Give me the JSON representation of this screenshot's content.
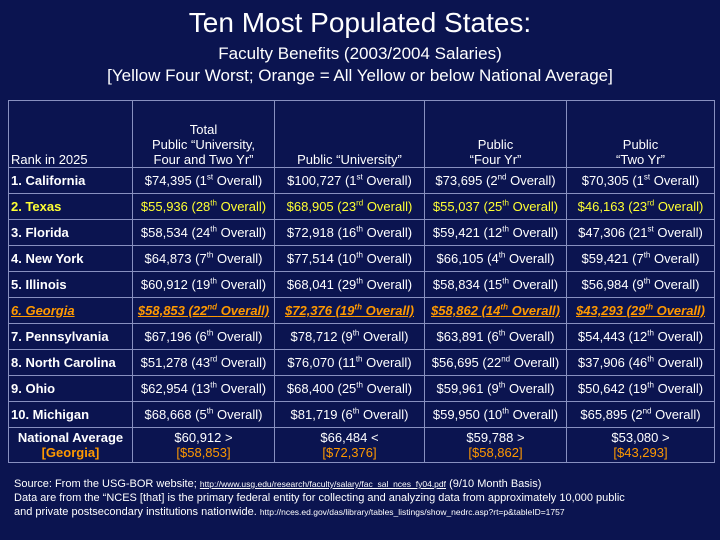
{
  "title": "Ten Most Populated States:",
  "subtitle_line1": "Faculty Benefits (2003/2004 Salaries)",
  "subtitle_line2": "[Yellow Four Worst; Orange = All Yellow or below National Average]",
  "headers": {
    "rank": "Rank in 2025",
    "col1_l1": "Total",
    "col1_l2": "Public “University,",
    "col1_l3": "Four and Two Yr”",
    "col2": "Public “University”",
    "col3_l1": "Public",
    "col3_l2": "“Four Yr”",
    "col4_l1": "Public",
    "col4_l2": "“Two Yr”"
  },
  "rows": [
    {
      "state": "1. California",
      "style": "white",
      "cells": [
        {
          "v": "$74,395 (1",
          "r": "st",
          "t": " Overall)"
        },
        {
          "v": "$100,727 (1",
          "r": "st",
          "t": " Overall)"
        },
        {
          "v": "$73,695 (2",
          "r": "nd",
          "t": " Overall)"
        },
        {
          "v": "$70,305 (1",
          "r": "st",
          "t": " Overall)"
        }
      ]
    },
    {
      "state": "2. Texas",
      "style": "yellow",
      "cells": [
        {
          "v": "$55,936 (28",
          "r": "th",
          "t": " Overall)"
        },
        {
          "v": "$68,905 (23",
          "r": "rd",
          "t": " Overall)"
        },
        {
          "v": "$55,037 (25",
          "r": "th",
          "t": " Overall)"
        },
        {
          "v": "$46,163 (23",
          "r": "rd",
          "t": " Overall)"
        }
      ]
    },
    {
      "state": "3. Florida",
      "style": "white",
      "cells": [
        {
          "v": "$58,534 (24",
          "r": "th",
          "t": " Overall)"
        },
        {
          "v": "$72,918 (16",
          "r": "th",
          "t": " Overall)"
        },
        {
          "v": "$59,421 (12",
          "r": "th",
          "t": " Overall)"
        },
        {
          "v": "$47,306 (21",
          "r": "st",
          "t": " Overall)"
        }
      ]
    },
    {
      "state": "4. New York",
      "style": "white",
      "cells": [
        {
          "v": "$64,873 (7",
          "r": "th",
          "t": " Overall)"
        },
        {
          "v": "$77,514 (10",
          "r": "th",
          "t": " Overall)"
        },
        {
          "v": "$66,105 (4",
          "r": "th",
          "t": " Overall)"
        },
        {
          "v": "$59,421 (7",
          "r": "th",
          "t": " Overall)"
        }
      ]
    },
    {
      "state": "5. Illinois",
      "style": "white",
      "cells": [
        {
          "v": "$60,912 (19",
          "r": "th",
          "t": " Overall)"
        },
        {
          "v": "$68,041 (29",
          "r": "th",
          "t": " Overall)"
        },
        {
          "v": "$58,834 (15",
          "r": "th",
          "t": " Overall)"
        },
        {
          "v": "$56,984 (9",
          "r": "th",
          "t": " Overall)"
        }
      ]
    },
    {
      "state": "6. Georgia",
      "style": "orange",
      "cells": [
        {
          "v": "$58,853 (22",
          "r": "nd",
          "t": " Overall)"
        },
        {
          "v": "$72,376 (19",
          "r": "th",
          "t": " Overall)"
        },
        {
          "v": "$58,862 (14",
          "r": "th",
          "t": " Overall)"
        },
        {
          "v": "$43,293 (29",
          "r": "th",
          "t": " Overall)"
        }
      ]
    },
    {
      "state": "7. Pennsylvania",
      "style": "white",
      "cells": [
        {
          "v": "$67,196 (6",
          "r": "th",
          "t": " Overall)"
        },
        {
          "v": "$78,712 (9",
          "r": "th",
          "t": " Overall)"
        },
        {
          "v": "$63,891 (6",
          "r": "th",
          "t": " Overall)"
        },
        {
          "v": "$54,443 (12",
          "r": "th",
          "t": " Overall)"
        }
      ]
    },
    {
      "state": "8. North Carolina",
      "style": "white",
      "cells": [
        {
          "v": "$51,278 (43",
          "r": "rd",
          "t": " Overall)"
        },
        {
          "v": "$76,070 (11",
          "r": "th",
          "t": " Overall)"
        },
        {
          "v": "$56,695 (22",
          "r": "nd",
          "t": " Overall)"
        },
        {
          "v": "$37,906 (46",
          "r": "th",
          "t": " Overall)"
        }
      ]
    },
    {
      "state": "9. Ohio",
      "style": "white",
      "cells": [
        {
          "v": "$62,954 (13",
          "r": "th",
          "t": " Overall)"
        },
        {
          "v": "$68,400 (25",
          "r": "th",
          "t": " Overall)"
        },
        {
          "v": "$59,961 (9",
          "r": "th",
          "t": " Overall)"
        },
        {
          "v": "$50,642 (19",
          "r": "th",
          "t": " Overall)"
        }
      ]
    },
    {
      "state": "10. Michigan",
      "style": "white",
      "cells": [
        {
          "v": "$68,668 (5",
          "r": "th",
          "t": " Overall)"
        },
        {
          "v": "$81,719 (6",
          "r": "th",
          "t": " Overall)"
        },
        {
          "v": "$59,950 (10",
          "r": "th",
          "t": " Overall)"
        },
        {
          "v": "$65,895 (2",
          "r": "nd",
          "t": " Overall)"
        }
      ]
    }
  ],
  "national": {
    "label": "National Average",
    "sublabel": "[Georgia]",
    "cells": [
      {
        "avg": "$60,912 >",
        "ga": "[$58,853]"
      },
      {
        "avg": "$66,484 <",
        "ga": "[$72,376]"
      },
      {
        "avg": "$59,788 >",
        "ga": "[$58,862]"
      },
      {
        "avg": "$53,080 >",
        "ga": "[$43,293]"
      }
    ]
  },
  "source": {
    "line1_a": "Source: From the USG-BOR website; ",
    "line1_url": "http://www.usg.edu/research/faculty/salary/fac_sal_nces_fy04.pdf",
    "line1_b": " (9/10 Month Basis)",
    "line2": "Data are from the “NCES [that] is the primary federal entity for collecting and analyzing data from approximately 10,000 public",
    "line3_a": "and private postsecondary institutions nationwide. ",
    "line3_url": "http://nces.ed.gov/das/library/tables_listings/show_nedrc.asp?rt=p&tableID=1757"
  }
}
